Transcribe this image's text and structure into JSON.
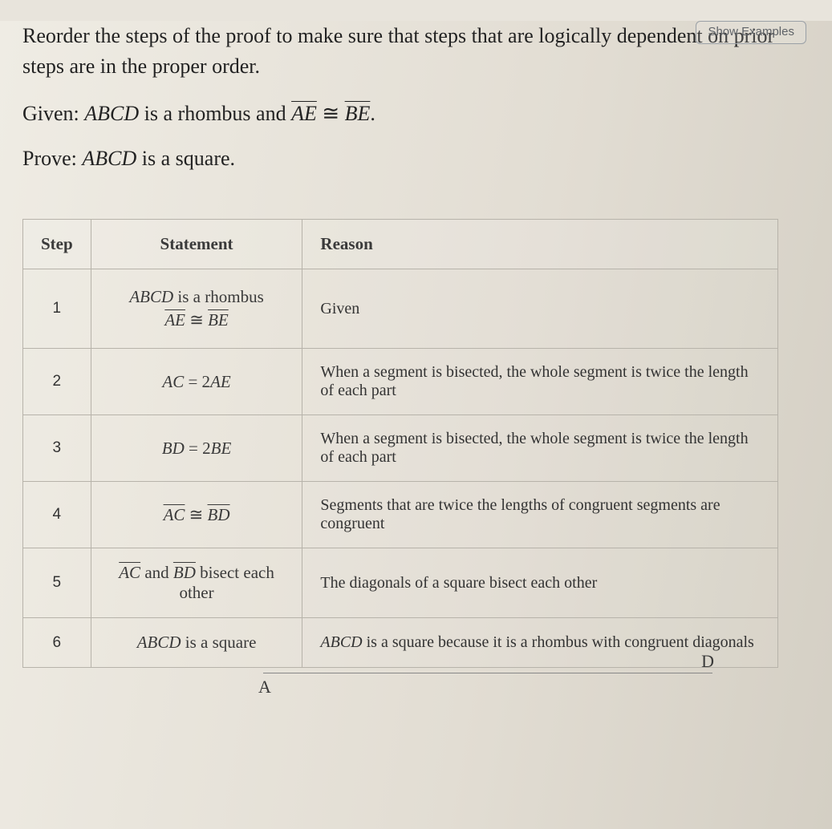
{
  "top_button": "Show Examples",
  "intro": "Reorder the steps of the proof to make sure that steps that are logically dependent on prior steps are in the proper order.",
  "given_label": "Given:",
  "given_body_prefix": " is a rhombus and ",
  "given_abcd": "ABCD",
  "given_seg1": "AE",
  "given_cong": "≅",
  "given_seg2": "BE",
  "prove_label": "Prove:",
  "prove_abcd": "ABCD",
  "prove_body": " is a square.",
  "headers": {
    "step": "Step",
    "statement": "Statement",
    "reason": "Reason"
  },
  "rows": [
    {
      "step": "1",
      "stmt_line1_abcd": "ABCD",
      "stmt_line1_rest": " is a rhombus",
      "stmt_line2_seg1": "AE",
      "stmt_line2_cong": "≅",
      "stmt_line2_seg2": "BE",
      "reason": "Given"
    },
    {
      "step": "2",
      "stmt_eq_lhs": "AC",
      "stmt_eq_op": " = 2",
      "stmt_eq_rhs": "AE",
      "reason": "When a segment is bisected, the whole segment is twice the length of each part"
    },
    {
      "step": "3",
      "stmt_eq_lhs": "BD",
      "stmt_eq_op": " = 2",
      "stmt_eq_rhs": "BE",
      "reason": "When a segment is bisected, the whole segment is twice the length of each part"
    },
    {
      "step": "4",
      "stmt_seg1": "AC",
      "stmt_cong": "≅",
      "stmt_seg2": "BD",
      "reason": "Segments that are twice the lengths of congruent segments are congruent"
    },
    {
      "step": "5",
      "stmt_seg1": "AC",
      "stmt_mid": " and ",
      "stmt_seg2": "BD",
      "stmt_tail": " bisect each other",
      "reason": "The diagonals of a square bisect each other"
    },
    {
      "step": "6",
      "stmt_abcd": "ABCD",
      "stmt_tail": " is a square",
      "reason_abcd": "ABCD",
      "reason_tail": " is a square because it is a rhombus with congruent diagonals"
    }
  ],
  "diag": {
    "A": "A",
    "D": "D"
  },
  "colors": {
    "background_gradient": [
      "#efece4",
      "#e2ddd3",
      "#d4cfc4"
    ],
    "text": "#3a3a3a",
    "border": "#b7b3aa",
    "button_border": "#9aa0a6",
    "button_text": "#5f6368"
  },
  "fonts": {
    "body": "Georgia",
    "ui": "Arial",
    "intro_size_pt": 20,
    "table_size_pt": 16
  }
}
